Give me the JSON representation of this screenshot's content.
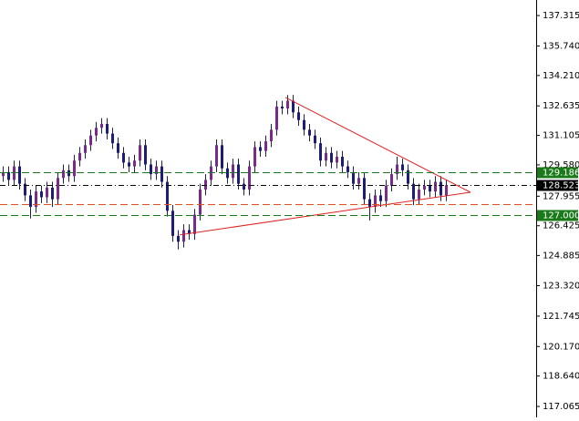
{
  "chart_data": {
    "type": "candlestick",
    "up_color": "#7a2a8a",
    "down_color": "#1c1c7a",
    "wick_color": "#222244",
    "ylim": [
      116.5,
      138.12
    ],
    "yticks": [
      137.315,
      {
        "value": 135.74,
        "label": "135.740"
      },
      {
        "value": 134.21,
        "label": "134.210"
      },
      132.635,
      131.105,
      {
        "value": 129.58,
        "label": "129.580"
      },
      127.955,
      126.425,
      124.885,
      {
        "value": 123.32,
        "label": "123.320"
      },
      121.745,
      {
        "value": 120.17,
        "label": "120.170"
      },
      {
        "value": 118.64,
        "label": "118.640"
      },
      117.065
    ],
    "open": [
      129.0,
      129.2,
      128.8,
      129.5,
      128.6,
      128.0,
      127.4,
      128.2,
      127.9,
      128.4,
      127.8,
      128.9,
      129.3,
      129.0,
      129.8,
      130.2,
      130.6,
      131.1,
      131.5,
      131.7,
      131.2,
      130.7,
      130.2,
      129.7,
      129.5,
      129.8,
      130.6,
      129.6,
      129.1,
      129.5,
      128.7,
      127.2,
      125.9,
      125.6,
      126.2,
      126.0,
      127.0,
      128.3,
      128.8,
      129.5,
      130.6,
      129.4,
      128.9,
      129.6,
      128.6,
      128.3,
      129.5,
      130.5,
      130.3,
      130.8,
      131.4,
      132.6,
      132.5,
      132.9,
      132.3,
      131.9,
      131.4,
      131.1,
      130.7,
      129.8,
      130.2,
      129.7,
      130.0,
      129.5,
      129.2,
      128.6,
      128.9,
      127.8,
      127.4,
      128.0,
      127.7,
      128.5,
      129.1,
      129.6,
      129.3,
      128.6,
      127.8,
      128.3,
      128.5,
      128.2,
      128.7,
      128.0
    ],
    "high": [
      129.5,
      129.5,
      129.8,
      129.8,
      128.9,
      128.3,
      128.5,
      128.5,
      128.7,
      128.7,
      129.2,
      129.6,
      129.6,
      130.1,
      130.5,
      130.9,
      131.4,
      131.8,
      132.0,
      132.0,
      131.5,
      131.0,
      130.5,
      130.0,
      130.1,
      130.9,
      130.9,
      129.9,
      129.8,
      129.8,
      129.0,
      127.5,
      126.2,
      126.5,
      126.5,
      127.3,
      128.6,
      129.1,
      129.8,
      130.9,
      130.9,
      129.7,
      129.9,
      129.9,
      128.9,
      129.8,
      130.8,
      130.8,
      131.1,
      131.7,
      132.9,
      132.9,
      133.2,
      133.2,
      132.6,
      132.2,
      131.7,
      131.4,
      131.0,
      130.5,
      130.5,
      130.3,
      130.3,
      129.8,
      129.5,
      129.2,
      129.2,
      128.1,
      128.3,
      128.3,
      128.8,
      129.4,
      130.0,
      129.9,
      129.6,
      128.9,
      128.6,
      128.8,
      128.8,
      129.0,
      129.0,
      128.8
    ],
    "low": [
      128.7,
      128.5,
      128.5,
      128.3,
      127.7,
      126.8,
      127.1,
      127.6,
      127.6,
      127.4,
      127.5,
      128.6,
      128.7,
      128.7,
      129.5,
      129.9,
      130.3,
      130.8,
      131.2,
      130.9,
      130.4,
      129.9,
      129.4,
      129.2,
      129.2,
      129.5,
      129.3,
      128.8,
      128.8,
      128.4,
      126.9,
      125.6,
      125.2,
      125.3,
      125.7,
      125.7,
      126.7,
      128.0,
      128.5,
      129.2,
      129.1,
      128.6,
      128.6,
      128.3,
      128.0,
      128.0,
      129.2,
      130.0,
      130.0,
      130.5,
      131.1,
      132.2,
      132.2,
      132.0,
      131.6,
      131.1,
      130.8,
      130.4,
      129.5,
      129.5,
      129.4,
      129.4,
      129.2,
      128.9,
      128.3,
      128.3,
      127.5,
      126.7,
      127.1,
      127.4,
      127.4,
      128.2,
      128.8,
      129.0,
      128.3,
      127.5,
      127.5,
      128.0,
      127.9,
      127.9,
      127.7,
      127.7
    ],
    "close": [
      129.2,
      128.8,
      129.5,
      128.6,
      128.0,
      127.4,
      128.2,
      127.9,
      128.4,
      127.8,
      128.9,
      129.3,
      129.0,
      129.8,
      130.2,
      130.6,
      131.1,
      131.5,
      131.7,
      131.2,
      130.7,
      130.2,
      129.7,
      129.5,
      129.8,
      130.6,
      129.6,
      129.1,
      129.5,
      128.7,
      127.2,
      125.9,
      125.6,
      126.2,
      126.0,
      127.0,
      128.3,
      128.8,
      129.5,
      130.6,
      129.4,
      128.9,
      129.6,
      128.6,
      128.3,
      129.5,
      130.5,
      130.3,
      130.8,
      131.4,
      132.6,
      132.5,
      132.9,
      132.3,
      131.9,
      131.4,
      131.1,
      130.7,
      129.8,
      130.2,
      129.7,
      130.0,
      129.5,
      129.2,
      128.6,
      128.9,
      127.8,
      127.4,
      128.0,
      127.7,
      128.5,
      129.1,
      129.6,
      129.3,
      128.6,
      127.8,
      128.3,
      128.5,
      128.2,
      128.7,
      128.0,
      128.523
    ],
    "last_price_line": true,
    "last_price_color": "#000000",
    "levels": [
      {
        "value": 129.186,
        "color": "#1a7a1a",
        "tagged": true
      },
      {
        "value": 127.0,
        "label": "127.000",
        "color": "#1a7a1a",
        "tagged": true
      },
      {
        "value": 127.544,
        "color": "#e05020",
        "tagged": false
      }
    ],
    "trendlines": [
      {
        "color": "#e02020",
        "points": [
          [
            51.67,
            133.07
          ],
          [
            85.5,
            128.16
          ]
        ]
      },
      {
        "color": "#e02020",
        "points": [
          [
            32.33,
            125.95
          ],
          [
            85.5,
            128.16
          ]
        ]
      }
    ]
  }
}
